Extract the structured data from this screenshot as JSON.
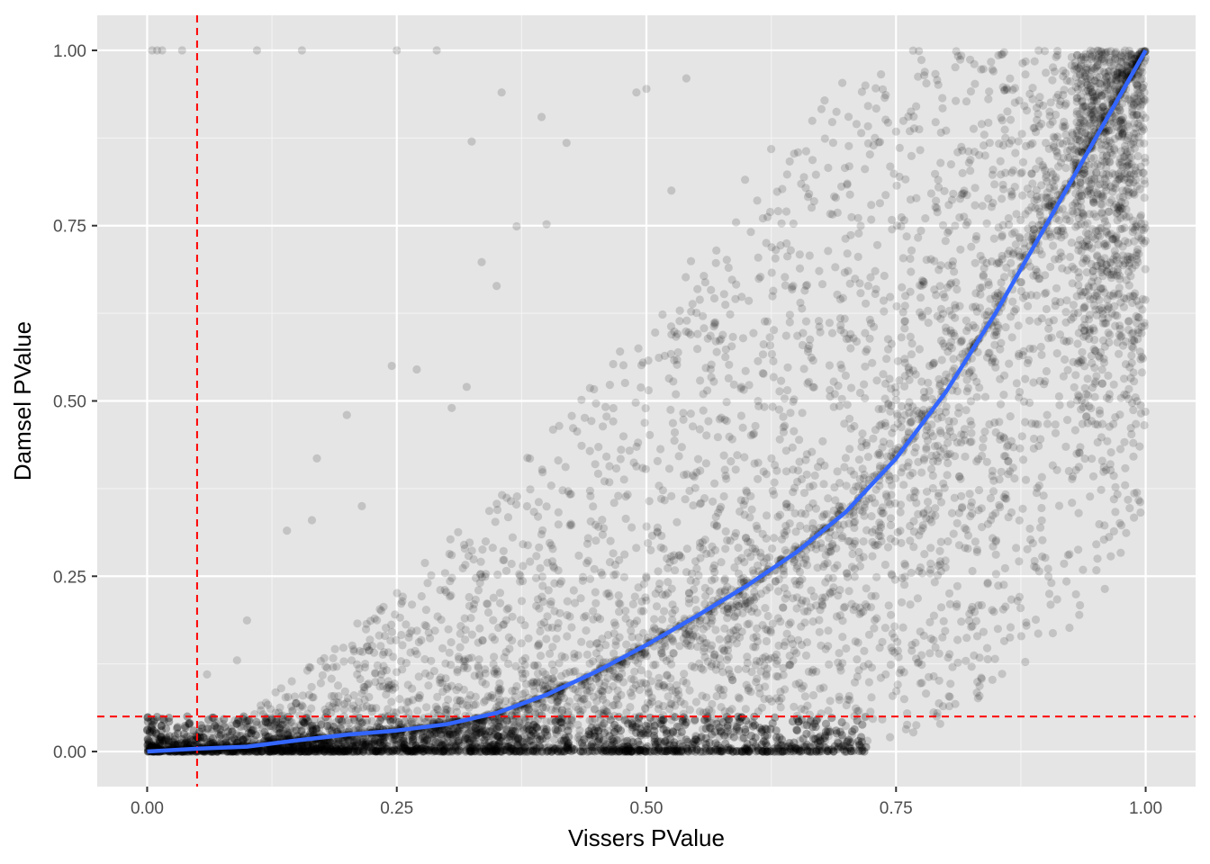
{
  "chart_data": {
    "type": "scatter",
    "title": "",
    "xlabel": "Vissers PValue",
    "ylabel": "Damsel PValue",
    "xlim": [
      -0.05,
      1.05
    ],
    "ylim": [
      -0.05,
      1.05
    ],
    "x_ticks": [
      0,
      0.25,
      0.5,
      0.75,
      1
    ],
    "x_tick_labels": [
      "0.00",
      "0.25",
      "0.50",
      "0.75",
      "1.00"
    ],
    "y_ticks": [
      0,
      0.25,
      0.5,
      0.75,
      1
    ],
    "y_tick_labels": [
      "0.00",
      "0.25",
      "0.50",
      "0.75",
      "1.00"
    ],
    "grid": true,
    "background": "#e5e5e5",
    "point_color": "#000000",
    "point_alpha": 0.15,
    "reference_lines": [
      {
        "orientation": "vertical",
        "value": 0.05,
        "color": "#ff0000",
        "style": "dashed"
      },
      {
        "orientation": "horizontal",
        "value": 0.05,
        "color": "#ff0000",
        "style": "dashed"
      }
    ],
    "smooth_line": {
      "color": "#3366ff",
      "x": [
        0,
        0.05,
        0.1,
        0.15,
        0.2,
        0.25,
        0.3,
        0.35,
        0.4,
        0.45,
        0.5,
        0.55,
        0.6,
        0.65,
        0.7,
        0.75,
        0.8,
        0.85,
        0.9,
        0.95,
        1.0
      ],
      "y": [
        0,
        0.004,
        0.007,
        0.016,
        0.024,
        0.03,
        0.039,
        0.055,
        0.081,
        0.114,
        0.152,
        0.193,
        0.236,
        0.284,
        0.342,
        0.418,
        0.513,
        0.626,
        0.75,
        0.875,
        1.0
      ]
    },
    "outlier_points": [
      {
        "x": 0.005,
        "y": 1.0
      },
      {
        "x": 0.01,
        "y": 1.0
      },
      {
        "x": 0.015,
        "y": 1.0
      },
      {
        "x": 0.035,
        "y": 1.0
      },
      {
        "x": 0.11,
        "y": 1.0
      },
      {
        "x": 0.155,
        "y": 1.0
      },
      {
        "x": 0.25,
        "y": 1.0
      },
      {
        "x": 0.29,
        "y": 1.0
      },
      {
        "x": 0.355,
        "y": 0.94
      },
      {
        "x": 0.325,
        "y": 0.87
      },
      {
        "x": 0.395,
        "y": 0.905
      },
      {
        "x": 0.42,
        "y": 0.868
      },
      {
        "x": 0.4,
        "y": 0.752
      },
      {
        "x": 0.37,
        "y": 0.749
      },
      {
        "x": 0.335,
        "y": 0.698
      },
      {
        "x": 0.35,
        "y": 0.664
      },
      {
        "x": 0.245,
        "y": 0.55
      },
      {
        "x": 0.27,
        "y": 0.545
      },
      {
        "x": 0.2,
        "y": 0.48
      },
      {
        "x": 0.17,
        "y": 0.418
      },
      {
        "x": 0.14,
        "y": 0.315
      },
      {
        "x": 0.165,
        "y": 0.33
      },
      {
        "x": 0.1,
        "y": 0.187
      },
      {
        "x": 0.49,
        "y": 0.94
      },
      {
        "x": 0.5,
        "y": 0.945
      },
      {
        "x": 0.54,
        "y": 0.96
      },
      {
        "x": 0.525,
        "y": 0.8
      },
      {
        "x": 0.09,
        "y": 0.13
      },
      {
        "x": 0.06,
        "y": 0.11
      },
      {
        "x": 0.32,
        "y": 0.52
      },
      {
        "x": 0.305,
        "y": 0.49
      },
      {
        "x": 0.215,
        "y": 0.35
      }
    ],
    "point_cloud": [
      {
        "x": 0.05,
        "y_low": 0.0,
        "y_high": 0.03
      },
      {
        "x": 0.1,
        "y_low": 0.0,
        "y_high": 0.06
      },
      {
        "x": 0.15,
        "y_low": 0.0,
        "y_high": 0.11
      },
      {
        "x": 0.2,
        "y_low": 0.0,
        "y_high": 0.17
      },
      {
        "x": 0.25,
        "y_low": 0.0,
        "y_high": 0.23
      },
      {
        "x": 0.3,
        "y_low": 0.0,
        "y_high": 0.3
      },
      {
        "x": 0.35,
        "y_low": 0.0,
        "y_high": 0.37
      },
      {
        "x": 0.4,
        "y_low": 0.0,
        "y_high": 0.45
      },
      {
        "x": 0.45,
        "y_low": 0.0,
        "y_high": 0.53
      },
      {
        "x": 0.5,
        "y_low": 0.0,
        "y_high": 0.62
      },
      {
        "x": 0.55,
        "y_low": 0.0,
        "y_high": 0.72
      },
      {
        "x": 0.6,
        "y_low": 0.0,
        "y_high": 0.82
      },
      {
        "x": 0.65,
        "y_low": 0.0,
        "y_high": 0.9
      },
      {
        "x": 0.7,
        "y_low": 0.005,
        "y_high": 0.97
      },
      {
        "x": 0.75,
        "y_low": 0.02,
        "y_high": 1.0
      },
      {
        "x": 0.8,
        "y_low": 0.04,
        "y_high": 1.0
      },
      {
        "x": 0.85,
        "y_low": 0.09,
        "y_high": 1.0
      },
      {
        "x": 0.9,
        "y_low": 0.14,
        "y_high": 1.0
      },
      {
        "x": 0.95,
        "y_low": 0.2,
        "y_high": 1.0
      },
      {
        "x": 1.0,
        "y_low": 0.34,
        "y_high": 1.0
      }
    ]
  }
}
